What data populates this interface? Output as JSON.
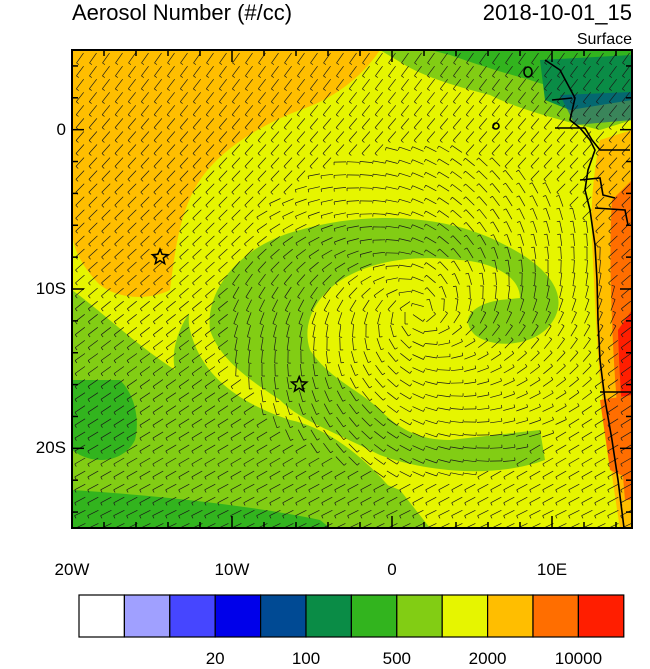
{
  "header": {
    "title": "Aerosol Number (#/cc)",
    "datetime": "2018-10-01_15",
    "level": "Surface"
  },
  "map": {
    "region": "Southeast Atlantic and southwestern Africa coast",
    "lon_range": [
      -20,
      15
    ],
    "lat_range": [
      -25,
      5
    ],
    "lat_labels": [
      {
        "lat": 0,
        "text": "0"
      },
      {
        "lat": -10,
        "text": "10S"
      },
      {
        "lat": -20,
        "text": "20S"
      }
    ],
    "lon_labels": [
      {
        "lon": -20,
        "text": "20W"
      },
      {
        "lon": -10,
        "text": "10W"
      },
      {
        "lon": 0,
        "text": "0"
      },
      {
        "lon": 10,
        "text": "10E"
      }
    ],
    "markers": [
      {
        "type": "star",
        "lon": -14.5,
        "lat": -8.0
      },
      {
        "type": "star",
        "lon": -5.8,
        "lat": -16.0
      }
    ],
    "field_overlay": "wind-barbs"
  },
  "colorbar": {
    "colors": [
      "#ffffff",
      "#a0a0ff",
      "#4646ff",
      "#0000ea",
      "#004a94",
      "#0a8c46",
      "#32b41e",
      "#82cd14",
      "#e6f500",
      "#ffbe00",
      "#ff6e00",
      "#ff1e00"
    ],
    "labels": [
      {
        "after_box": 2,
        "text": "20"
      },
      {
        "after_box": 4,
        "text": "100"
      },
      {
        "after_box": 6,
        "text": "500"
      },
      {
        "after_box": 8,
        "text": "2000"
      },
      {
        "after_box": 10,
        "text": "10000"
      }
    ]
  }
}
